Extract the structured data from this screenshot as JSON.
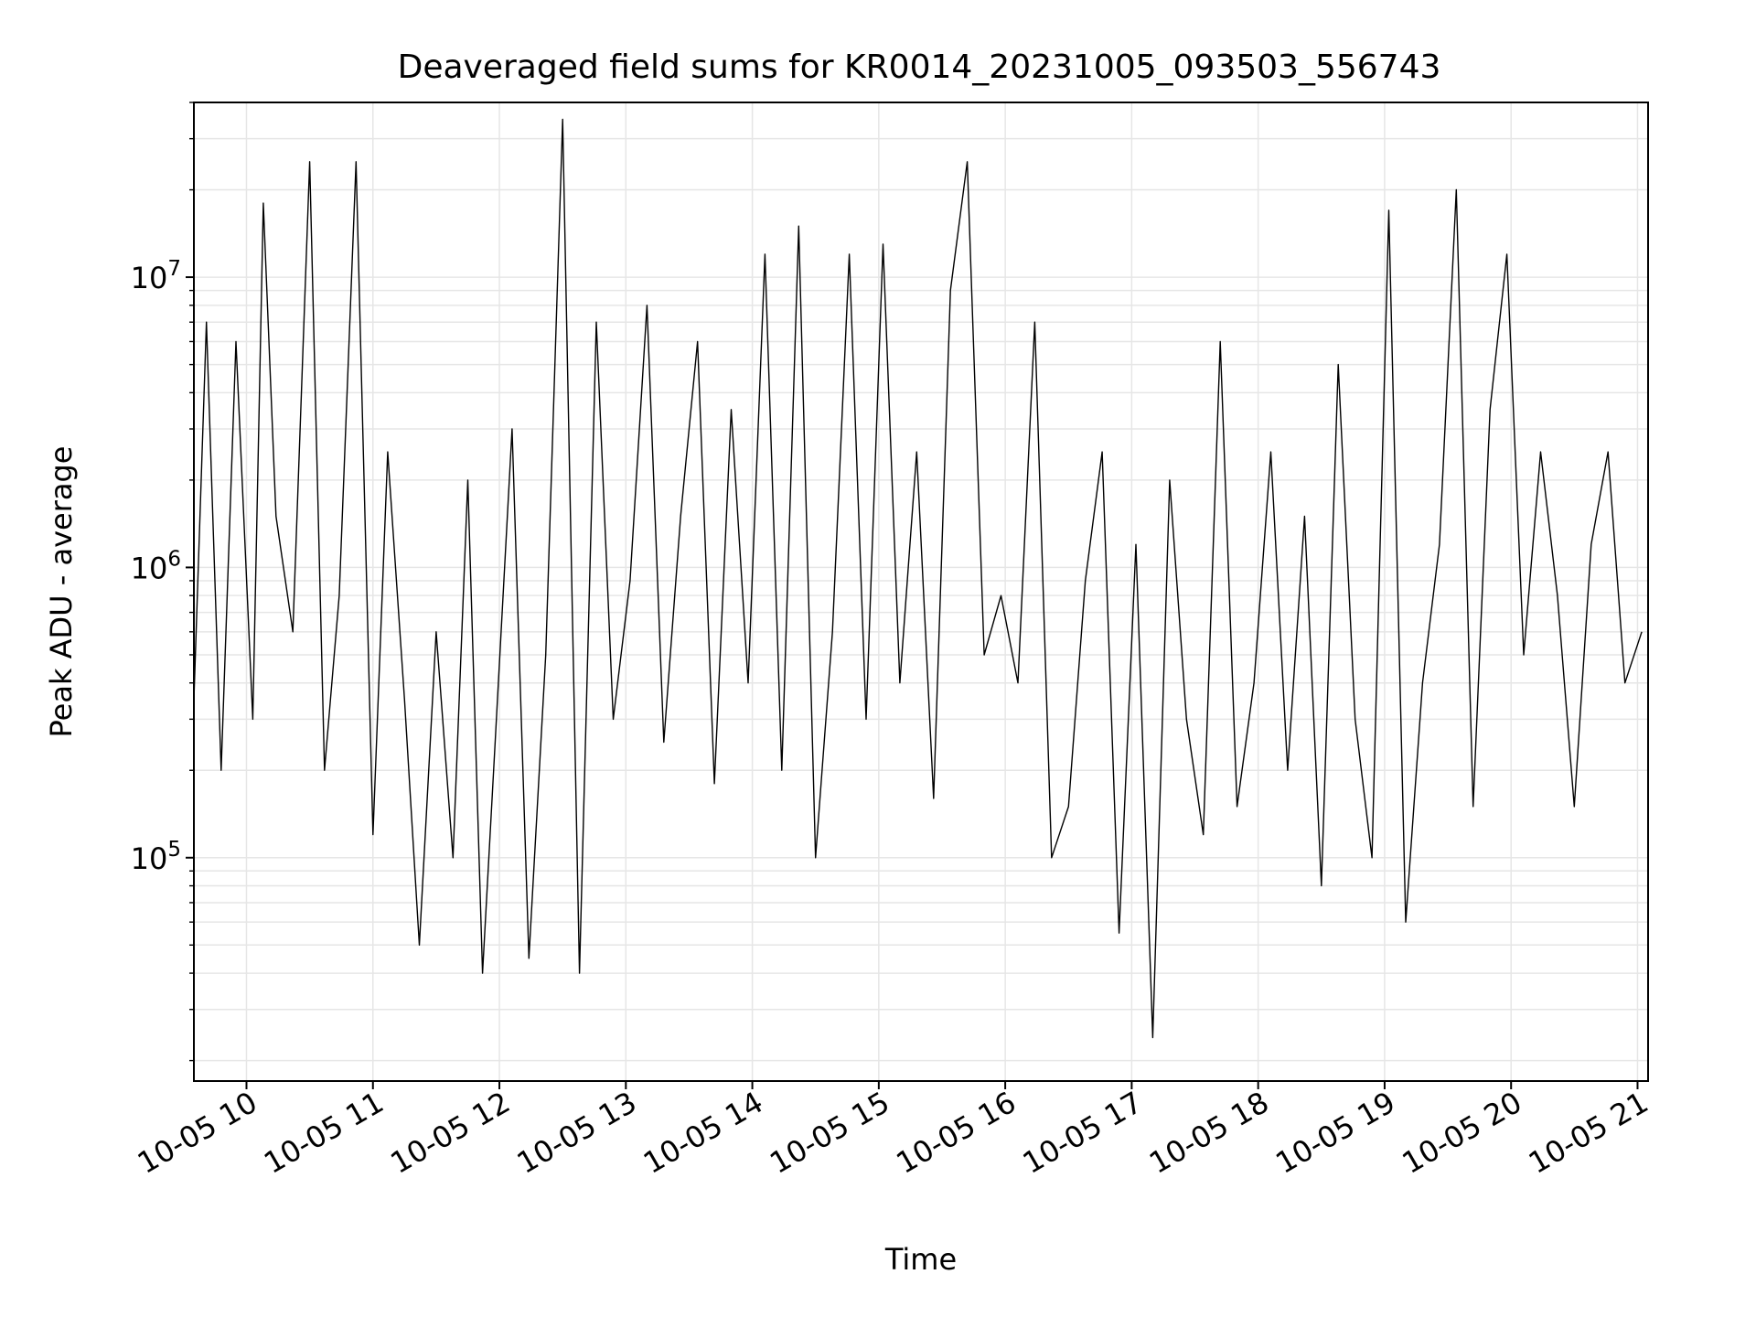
{
  "chart_data": {
    "type": "line",
    "title": "Deaveraged field sums for KR0014_20231005_093503_556743",
    "xlabel": "Time",
    "ylabel": "Peak ADU - average",
    "xscale": "time",
    "yscale": "log",
    "xlim": [
      "2023-10-05T09:35:03",
      "2023-10-05T21:05:00"
    ],
    "ylim": [
      17000,
      40000000
    ],
    "grid": true,
    "line_color": "#000000",
    "grid_color": "#e6e6e6",
    "x_ticks": [
      {
        "value": "2023-10-05T10:00:00",
        "label": "10-05 10"
      },
      {
        "value": "2023-10-05T11:00:00",
        "label": "10-05 11"
      },
      {
        "value": "2023-10-05T12:00:00",
        "label": "10-05 12"
      },
      {
        "value": "2023-10-05T13:00:00",
        "label": "10-05 13"
      },
      {
        "value": "2023-10-05T14:00:00",
        "label": "10-05 14"
      },
      {
        "value": "2023-10-05T15:00:00",
        "label": "10-05 15"
      },
      {
        "value": "2023-10-05T16:00:00",
        "label": "10-05 16"
      },
      {
        "value": "2023-10-05T17:00:00",
        "label": "10-05 17"
      },
      {
        "value": "2023-10-05T18:00:00",
        "label": "10-05 18"
      },
      {
        "value": "2023-10-05T19:00:00",
        "label": "10-05 19"
      },
      {
        "value": "2023-10-05T20:00:00",
        "label": "10-05 20"
      },
      {
        "value": "2023-10-05T21:00:00",
        "label": "10-05 21"
      }
    ],
    "y_ticks": [
      {
        "value": 100000,
        "base": "10",
        "exp": "5"
      },
      {
        "value": 1000000,
        "base": "10",
        "exp": "6"
      },
      {
        "value": 10000000,
        "base": "10",
        "exp": "7"
      }
    ],
    "series": [
      {
        "x": [
          "2023-10-05T09:35:03",
          "2023-10-05T09:41:00",
          "2023-10-05T09:48:00",
          "2023-10-05T09:55:00",
          "2023-10-05T10:03:00",
          "2023-10-05T10:08:00",
          "2023-10-05T10:14:00",
          "2023-10-05T10:22:00",
          "2023-10-05T10:30:00",
          "2023-10-05T10:37:00",
          "2023-10-05T10:44:00",
          "2023-10-05T10:52:00",
          "2023-10-05T11:00:00",
          "2023-10-05T11:07:00",
          "2023-10-05T11:15:00",
          "2023-10-05T11:22:00",
          "2023-10-05T11:30:00",
          "2023-10-05T11:38:00",
          "2023-10-05T11:45:00",
          "2023-10-05T11:52:00",
          "2023-10-05T11:58:00",
          "2023-10-05T12:06:00",
          "2023-10-05T12:14:00",
          "2023-10-05T12:22:00",
          "2023-10-05T12:30:00",
          "2023-10-05T12:38:00",
          "2023-10-05T12:46:00",
          "2023-10-05T12:54:00",
          "2023-10-05T13:02:00",
          "2023-10-05T13:10:00",
          "2023-10-05T13:18:00",
          "2023-10-05T13:26:00",
          "2023-10-05T13:34:00",
          "2023-10-05T13:42:00",
          "2023-10-05T13:50:00",
          "2023-10-05T13:58:00",
          "2023-10-05T14:06:00",
          "2023-10-05T14:14:00",
          "2023-10-05T14:22:00",
          "2023-10-05T14:30:00",
          "2023-10-05T14:38:00",
          "2023-10-05T14:46:00",
          "2023-10-05T14:54:00",
          "2023-10-05T15:02:00",
          "2023-10-05T15:10:00",
          "2023-10-05T15:18:00",
          "2023-10-05T15:26:00",
          "2023-10-05T15:34:00",
          "2023-10-05T15:42:00",
          "2023-10-05T15:50:00",
          "2023-10-05T15:58:00",
          "2023-10-05T16:06:00",
          "2023-10-05T16:14:00",
          "2023-10-05T16:22:00",
          "2023-10-05T16:30:00",
          "2023-10-05T16:38:00",
          "2023-10-05T16:46:00",
          "2023-10-05T16:54:00",
          "2023-10-05T17:02:00",
          "2023-10-05T17:10:00",
          "2023-10-05T17:18:00",
          "2023-10-05T17:26:00",
          "2023-10-05T17:34:00",
          "2023-10-05T17:42:00",
          "2023-10-05T17:50:00",
          "2023-10-05T17:58:00",
          "2023-10-05T18:06:00",
          "2023-10-05T18:14:00",
          "2023-10-05T18:22:00",
          "2023-10-05T18:30:00",
          "2023-10-05T18:38:00",
          "2023-10-05T18:46:00",
          "2023-10-05T18:54:00",
          "2023-10-05T19:02:00",
          "2023-10-05T19:10:00",
          "2023-10-05T19:18:00",
          "2023-10-05T19:26:00",
          "2023-10-05T19:34:00",
          "2023-10-05T19:42:00",
          "2023-10-05T19:50:00",
          "2023-10-05T19:58:00",
          "2023-10-05T20:06:00",
          "2023-10-05T20:14:00",
          "2023-10-05T20:22:00",
          "2023-10-05T20:30:00",
          "2023-10-05T20:38:00",
          "2023-10-05T20:46:00",
          "2023-10-05T20:54:00",
          "2023-10-05T21:02:00"
        ],
        "y": [
          350000,
          7000000,
          200000,
          6000000,
          300000,
          18000000,
          1500000,
          600000,
          25000000,
          200000,
          800000,
          25000000,
          120000,
          2500000,
          350000,
          50000,
          600000,
          100000,
          2000000,
          40000,
          250000,
          3000000,
          45000,
          500000,
          35000000,
          40000,
          7000000,
          300000,
          900000,
          8000000,
          250000,
          1500000,
          6000000,
          180000,
          3500000,
          400000,
          12000000,
          200000,
          15000000,
          100000,
          600000,
          12000000,
          300000,
          13000000,
          400000,
          2500000,
          160000,
          9000000,
          25000000,
          500000,
          800000,
          400000,
          7000000,
          100000,
          150000,
          900000,
          2500000,
          55000,
          1200000,
          24000,
          2000000,
          300000,
          120000,
          6000000,
          150000,
          400000,
          2500000,
          200000,
          1500000,
          80000,
          5000000,
          300000,
          100000,
          17000000,
          60000,
          400000,
          1200000,
          20000000,
          150000,
          3500000,
          12000000,
          500000,
          2500000,
          800000,
          150000,
          1200000,
          2500000,
          400000,
          600000
        ]
      }
    ]
  }
}
